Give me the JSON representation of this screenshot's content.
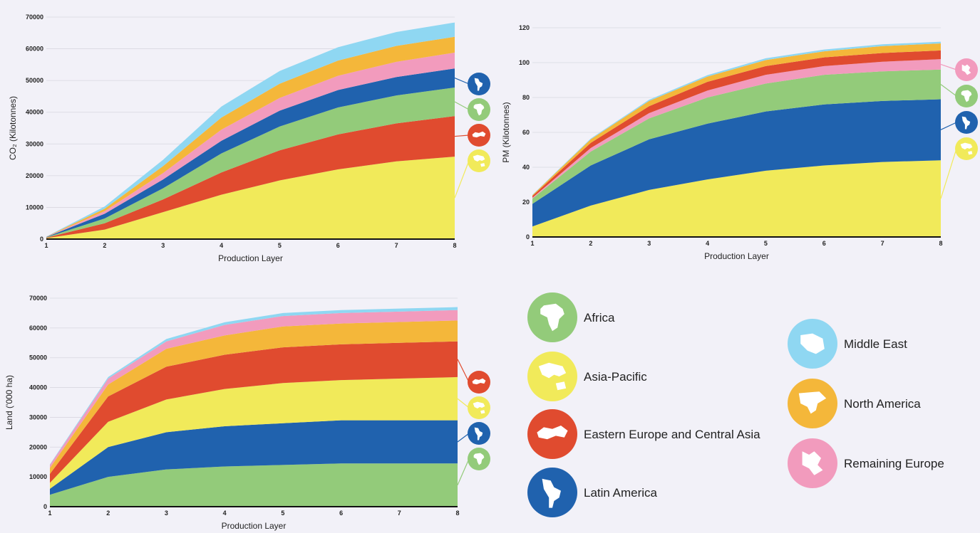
{
  "colors": {
    "Africa": "#93cb7a",
    "Asia-Pacific": "#f1ea5a",
    "Eastern Europe and Central Asia": "#e04b2f",
    "Latin America": "#2062ae",
    "Middle East": "#8fd7f2",
    "North America": "#f4b73a",
    "Remaining Europe": "#f29bbd"
  },
  "legend": {
    "items": [
      {
        "name": "Africa",
        "icon": "africa-icon"
      },
      {
        "name": "Asia-Pacific",
        "icon": "asia-pacific-icon"
      },
      {
        "name": "Eastern Europe and Central Asia",
        "icon": "eastern-europe-icon"
      },
      {
        "name": "Latin America",
        "icon": "latin-america-icon"
      },
      {
        "name": "Middle East",
        "icon": "middle-east-icon"
      },
      {
        "name": "North America",
        "icon": "north-america-icon"
      },
      {
        "name": "Remaining Europe",
        "icon": "remaining-europe-icon"
      }
    ]
  },
  "chart_data": [
    {
      "type": "area",
      "stacked": true,
      "title": "",
      "xlabel": "Production Layer",
      "ylabel": "CO₂ (Kilotonnes)",
      "x": [
        1,
        2,
        3,
        4,
        5,
        6,
        7,
        8
      ],
      "ylim": [
        0,
        70000
      ],
      "yticks": [
        0,
        10000,
        20000,
        30000,
        40000,
        50000,
        60000,
        70000
      ],
      "series": [
        {
          "name": "Asia-Pacific",
          "values": [
            300,
            3000,
            8500,
            14000,
            18500,
            22000,
            24500,
            26000
          ]
        },
        {
          "name": "Eastern Europe and Central Asia",
          "values": [
            150,
            2000,
            4000,
            7000,
            9500,
            11000,
            12000,
            12800
          ]
        },
        {
          "name": "Africa",
          "values": [
            100,
            1500,
            3500,
            6000,
            7500,
            8500,
            8800,
            9000
          ]
        },
        {
          "name": "Latin America",
          "values": [
            100,
            1500,
            2800,
            4000,
            5000,
            5500,
            5800,
            6000
          ]
        },
        {
          "name": "Remaining Europe",
          "values": [
            50,
            800,
            2000,
            3500,
            4000,
            4500,
            4800,
            5000
          ]
        },
        {
          "name": "North America",
          "values": [
            50,
            800,
            2200,
            3800,
            4500,
            4800,
            5000,
            5000
          ]
        },
        {
          "name": "Middle East",
          "values": [
            50,
            700,
            2000,
            3500,
            4000,
            4200,
            4400,
            4500
          ]
        }
      ],
      "markers": [
        "Latin America",
        "Africa",
        "Eastern Europe and Central Asia",
        "Asia-Pacific"
      ]
    },
    {
      "type": "area",
      "stacked": true,
      "title": "",
      "xlabel": "Production Layer",
      "ylabel": "PM (Kilotonnes)",
      "x": [
        1,
        2,
        3,
        4,
        5,
        6,
        7,
        8
      ],
      "ylim": [
        0,
        120
      ],
      "yticks": [
        0,
        20,
        40,
        60,
        80,
        100,
        120
      ],
      "series": [
        {
          "name": "Asia-Pacific",
          "values": [
            6,
            18,
            27,
            33,
            38,
            41,
            43,
            44
          ]
        },
        {
          "name": "Latin America",
          "values": [
            13,
            23,
            29,
            32,
            34,
            35,
            35,
            35
          ]
        },
        {
          "name": "Africa",
          "values": [
            3,
            8,
            12,
            15,
            16,
            17,
            17,
            17
          ]
        },
        {
          "name": "Remaining Europe",
          "values": [
            0.5,
            2,
            3,
            4,
            5,
            5,
            5.5,
            6
          ]
        },
        {
          "name": "Eastern Europe and Central Asia",
          "values": [
            1,
            3,
            4,
            5,
            5,
            5,
            5,
            5
          ]
        },
        {
          "name": "North America",
          "values": [
            0.5,
            2,
            3,
            3,
            3.5,
            3.5,
            4,
            4
          ]
        },
        {
          "name": "Middle East",
          "values": [
            0.2,
            0.5,
            0.7,
            0.8,
            1,
            1,
            1,
            1
          ]
        }
      ],
      "markers": [
        "Remaining Europe",
        "Africa",
        "Latin America",
        "Asia-Pacific"
      ]
    },
    {
      "type": "area",
      "stacked": true,
      "title": "",
      "xlabel": "Production Layer",
      "ylabel": "Land ('000 ha)",
      "x": [
        1,
        2,
        3,
        4,
        5,
        6,
        7,
        8
      ],
      "ylim": [
        0,
        70000
      ],
      "yticks": [
        0,
        10000,
        20000,
        30000,
        40000,
        50000,
        60000,
        70000
      ],
      "series": [
        {
          "name": "Africa",
          "values": [
            4000,
            10000,
            12500,
            13500,
            14000,
            14500,
            14500,
            14500
          ]
        },
        {
          "name": "Latin America",
          "values": [
            2000,
            10000,
            12500,
            13500,
            14000,
            14500,
            14500,
            14500
          ]
        },
        {
          "name": "Asia-Pacific",
          "values": [
            2000,
            8500,
            11000,
            12500,
            13500,
            13500,
            14000,
            14500
          ]
        },
        {
          "name": "Eastern Europe and Central Asia",
          "values": [
            3000,
            8500,
            11000,
            11500,
            12000,
            12000,
            12000,
            12000
          ]
        },
        {
          "name": "North America",
          "values": [
            2000,
            4000,
            6000,
            6500,
            7000,
            7000,
            7000,
            7000
          ]
        },
        {
          "name": "Remaining Europe",
          "values": [
            1000,
            2000,
            2500,
            3500,
            3500,
            3500,
            3500,
            3500
          ]
        },
        {
          "name": "Middle East",
          "values": [
            200,
            500,
            800,
            900,
            1000,
            1000,
            1000,
            1000
          ]
        }
      ],
      "markers": [
        "Eastern Europe and Central Asia",
        "Asia-Pacific",
        "Latin America",
        "Africa"
      ]
    }
  ]
}
